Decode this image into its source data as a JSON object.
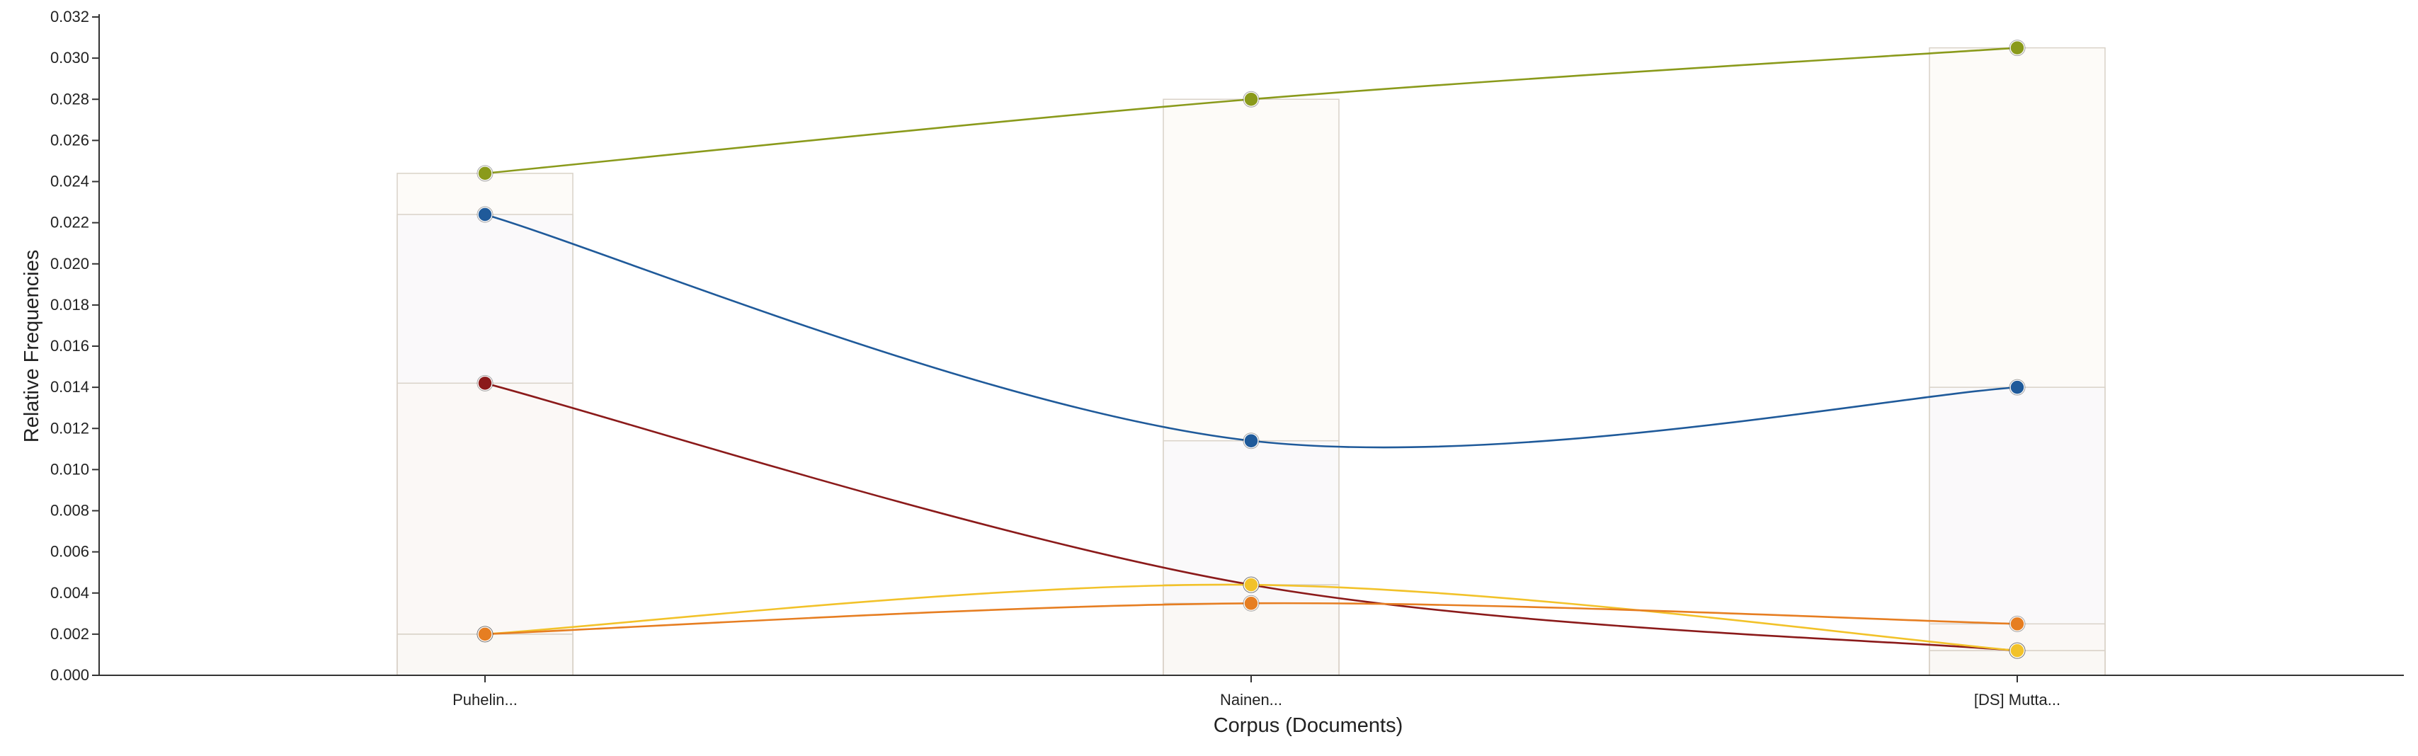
{
  "chart_data": {
    "type": "line",
    "xlabel": "Corpus (Documents)",
    "ylabel": "Relative Frequencies",
    "categories": [
      "Puhelin...",
      "Nainen...",
      "[DS] Mutta..."
    ],
    "ylim": [
      0,
      0.032
    ],
    "yticks": [
      "0.000",
      "0.002",
      "0.004",
      "0.006",
      "0.008",
      "0.010",
      "0.012",
      "0.014",
      "0.016",
      "0.018",
      "0.020",
      "0.022",
      "0.024",
      "0.026",
      "0.028",
      "0.030",
      "0.032"
    ],
    "grid": false,
    "legend": "none",
    "series": [
      {
        "color": "#8a9a1b",
        "values": [
          0.0244,
          0.028,
          0.0305
        ]
      },
      {
        "color": "#1f5a9a",
        "values": [
          0.0224,
          0.0114,
          0.014
        ]
      },
      {
        "color": "#8b1a1a",
        "values": [
          0.0142,
          0.0044,
          0.0012
        ]
      },
      {
        "color": "#f2c22a",
        "values": [
          0.002,
          0.0044,
          0.0012
        ]
      },
      {
        "color": "#e67e22",
        "values": [
          0.002,
          0.0035,
          0.0025
        ]
      }
    ]
  }
}
